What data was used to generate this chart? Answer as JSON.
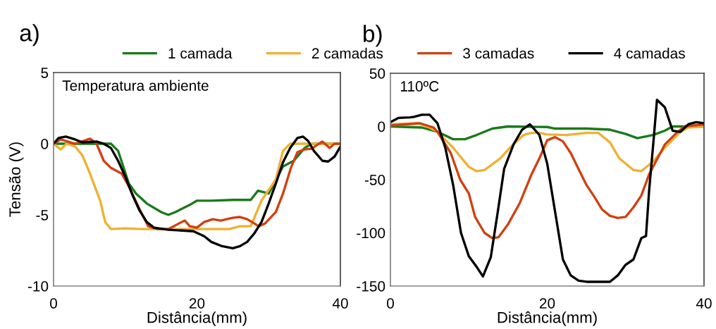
{
  "chart_data": [
    {
      "type": "line",
      "title": "a)",
      "xlabel": "Distância(mm)",
      "ylabel": "Tensão (V)",
      "annotations": [
        "Temperatura ambiente"
      ],
      "xlim": [
        0,
        40
      ],
      "ylim": [
        -10,
        5
      ],
      "xticks": [
        0,
        20,
        40
      ],
      "yticks": [
        -10,
        -5,
        0,
        5
      ],
      "grid": false,
      "legend": "top",
      "line_style": "solid",
      "series": [
        {
          "name": "1 camada",
          "color": "#1a7a1a",
          "x": [
            0,
            8,
            9,
            10.5,
            11.5,
            13,
            15,
            16,
            17,
            19,
            20,
            22,
            25,
            27.5,
            28.5,
            30,
            32,
            33.5,
            35,
            36,
            40
          ],
          "values": [
            0,
            0,
            -0.5,
            -2.8,
            -3.5,
            -4.2,
            -4.8,
            -5.0,
            -4.8,
            -4.3,
            -4.0,
            -4.0,
            -3.95,
            -3.95,
            -3.3,
            -3.5,
            -1.6,
            -1.2,
            -0.3,
            0,
            0
          ]
        },
        {
          "name": "2 camadas",
          "color": "#f0b030",
          "x": [
            0,
            1,
            1.8,
            3,
            4,
            5,
            6.5,
            7.2,
            8,
            10,
            12,
            15,
            20,
            24.5,
            26,
            27.5,
            29,
            31,
            32,
            33,
            40
          ],
          "values": [
            0,
            -0.4,
            0,
            -0.2,
            -0.8,
            -2,
            -4,
            -5.5,
            -6,
            -5.95,
            -6,
            -6,
            -6,
            -6,
            -5.8,
            -5.8,
            -4,
            -2.5,
            -0.5,
            0,
            0
          ]
        },
        {
          "name": "3 camadas",
          "color": "#d04010",
          "x": [
            0,
            1,
            3,
            5.1,
            6,
            7,
            8,
            9.5,
            10.5,
            12,
            13.2,
            14.5,
            16,
            17.5,
            18.3,
            19,
            20,
            21,
            22.2,
            23.3,
            25,
            26,
            27,
            28,
            28.6,
            29.5,
            31,
            32,
            33.1,
            34,
            35,
            36,
            37,
            37.5,
            38.5,
            39.2,
            40
          ],
          "values": [
            0,
            0.3,
            0,
            0.35,
            0,
            -1.2,
            -1.7,
            -2.1,
            -3,
            -4.6,
            -5.8,
            -6,
            -6,
            -5.6,
            -5.4,
            -5.8,
            -5.9,
            -5.5,
            -5.3,
            -5.4,
            -5.2,
            -5.15,
            -5.3,
            -5.6,
            -5.8,
            -5.6,
            -4.8,
            -3.5,
            -1.7,
            -0.6,
            -0.4,
            -0.35,
            0,
            0.15,
            -0.3,
            0,
            0
          ]
        },
        {
          "name": "4 camadas",
          "color": "#000000",
          "x": [
            0,
            0.7,
            1.7,
            3,
            4,
            6,
            7,
            8,
            9,
            10,
            11,
            12,
            13,
            14,
            16,
            18,
            19.5,
            21,
            22,
            23.5,
            25,
            26,
            27,
            28,
            29,
            30,
            31,
            32,
            33,
            34,
            34.8,
            35.5,
            36.3,
            37.5,
            38.3,
            39.2,
            40
          ],
          "values": [
            0,
            0.4,
            0.5,
            0.3,
            0.1,
            0.15,
            0,
            -0.3,
            -1.2,
            -2.3,
            -3.6,
            -4.7,
            -5.5,
            -5.9,
            -6.05,
            -6.1,
            -6.15,
            -6.5,
            -6.9,
            -7.2,
            -7.35,
            -7.2,
            -6.9,
            -6.3,
            -5.5,
            -4.2,
            -2.8,
            -1.3,
            -0.3,
            0.4,
            0.5,
            0.2,
            -0.5,
            -1.2,
            -1.25,
            -0.9,
            -0.2
          ]
        }
      ]
    },
    {
      "type": "line",
      "title": "b)",
      "xlabel": "Distância(mm)",
      "annotations": [
        "110ºC"
      ],
      "xlim": [
        0,
        40
      ],
      "ylim": [
        -150,
        50
      ],
      "xticks": [
        0,
        20,
        40
      ],
      "yticks": [
        -150,
        -100,
        -50,
        0,
        50
      ],
      "grid": false,
      "line_style": "solid",
      "series": [
        {
          "name": "1 camada",
          "color": "#1a7a1a",
          "x": [
            0,
            4,
            6,
            8,
            9.5,
            11,
            13,
            15,
            20,
            21,
            25,
            28,
            30,
            31.5,
            33.5,
            35,
            36,
            40
          ],
          "values": [
            0,
            -1,
            -5,
            -12,
            -12,
            -8,
            -2,
            0,
            -0.5,
            -2,
            -2,
            -3,
            -7,
            -11,
            -8,
            -4,
            0,
            0
          ]
        },
        {
          "name": "2 camadas",
          "color": "#f0b030",
          "x": [
            0,
            3.5,
            5,
            6,
            8,
            10,
            11,
            12,
            14,
            15.5,
            17,
            18,
            19,
            20,
            22.5,
            25,
            26.5,
            28,
            29.2,
            31,
            32,
            33.5,
            35,
            37,
            38,
            40
          ],
          "values": [
            2,
            3,
            -1,
            -5,
            -20,
            -38,
            -42,
            -41,
            -30,
            -18,
            -8,
            -6,
            -6,
            -7.5,
            -8,
            -6,
            -6,
            -15,
            -30,
            -41,
            -42,
            -33,
            -20,
            -5,
            -1,
            0
          ]
        },
        {
          "name": "3 camadas",
          "color": "#d04010",
          "x": [
            0,
            3.8,
            5.5,
            6,
            7.7,
            8.9,
            10,
            10.8,
            12,
            13,
            13.8,
            15,
            16.5,
            18,
            19,
            20,
            21,
            22,
            23,
            24,
            25,
            26,
            27,
            28,
            29,
            30,
            31,
            32,
            33,
            34,
            35,
            36.5,
            37.5,
            40
          ],
          "values": [
            1,
            3,
            -1,
            -5,
            -25,
            -50,
            -63,
            -85,
            -100,
            -105,
            -104,
            -92,
            -72,
            -45,
            -30,
            -13,
            -10,
            -14,
            -25,
            -40,
            -55,
            -66,
            -78,
            -84,
            -86,
            -85,
            -76,
            -65,
            -45,
            -31,
            -17,
            -6,
            0,
            2
          ]
        },
        {
          "name": "4 camadas",
          "color": "#000000",
          "x": [
            0,
            1,
            2.5,
            3,
            4,
            5,
            6,
            7,
            8,
            9,
            10,
            11,
            11.8,
            12.8,
            13.7,
            14.5,
            15.7,
            16.8,
            17.8,
            19,
            20,
            21,
            22,
            23,
            24,
            25,
            28,
            29,
            30,
            31,
            32,
            32.6,
            33,
            33.6,
            34,
            35,
            36,
            37,
            38,
            39,
            40
          ],
          "values": [
            4,
            8,
            8.5,
            9,
            11,
            11,
            3,
            -20,
            -55,
            -100,
            -122,
            -132,
            -141,
            -123,
            -80,
            -40,
            -17,
            -3,
            2,
            -8,
            -35,
            -80,
            -125,
            -140,
            -145,
            -146,
            -146,
            -140,
            -130,
            -125,
            -105,
            -103,
            -60,
            -10,
            25,
            18,
            -4,
            -5,
            2,
            4,
            3
          ]
        }
      ]
    }
  ]
}
